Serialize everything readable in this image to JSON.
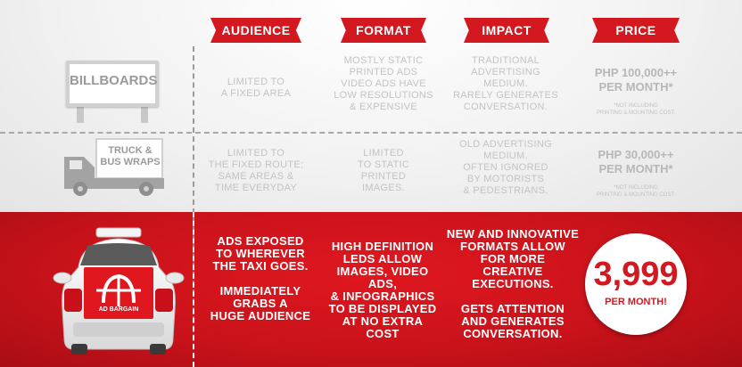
{
  "headers": {
    "audience": "AUDIENCE",
    "format": "FORMAT",
    "impact": "IMPACT",
    "price": "PRICE"
  },
  "billboards": {
    "label": "BILLBOARDS",
    "audience": "LIMITED TO\nA FIXED AREA",
    "format": "MOSTLY STATIC\nPRINTED ADS\nVIDEO ADS HAVE\nLOW RESOLUTIONS\n& EXPENSIVE",
    "impact": "TRADITIONAL\nADVERTISING\nMEDIUM.\nRARELY GENERATES\nCONVERSATION.",
    "price": "PHP 100,000++\nPER MONTH*",
    "price_note": "*NOT INCLUDING\nPRINTING & MOUNTING COST."
  },
  "truck": {
    "label": "TRUCK &\nBUS WRAPS",
    "audience": "LIMITED TO\nTHE FIXED ROUTE;\nSAME AREAS &\nTIME EVERYDAY",
    "format": "LIMITED\nTO STATIC\nPRINTED\nIMAGES.",
    "impact": "OLD ADVERTISING\nMEDIUM.\nOFTEN IGNORED\nBY MOTORISTS\n& PEDESTRIANS.",
    "price": "PHP 30,000++\nPER MONTH*",
    "price_note": "*NOT INCLUDING\nPRINTING & MOUNTING COST."
  },
  "taxi": {
    "logo_text": "AD BARGAIN",
    "audience": "ADS EXPOSED\nTO WHEREVER\nTHE TAXI GOES.\n\nIMMEDIATELY\nGRABS A\nHUGE AUDIENCE",
    "format": "HIGH DEFINITION\nLEDS ALLOW\nIMAGES, VIDEO ADS,\n& INFOGRAPHICS\nTO BE DISPLAYED\nAT NO EXTRA COST",
    "impact": "NEW AND INNOVATIVE\nFORMATS ALLOW\nFOR MORE\nCREATIVE EXECUTIONS.\n\nGETS ATTENTION\nAND GENERATES\nCONVERSATION.",
    "price": "3,999",
    "price_unit": "PER MONTH!"
  },
  "colors": {
    "brand_red": "#d41820",
    "muted_text": "#c3c3c3",
    "icon_gray": "#9a9a9a"
  }
}
